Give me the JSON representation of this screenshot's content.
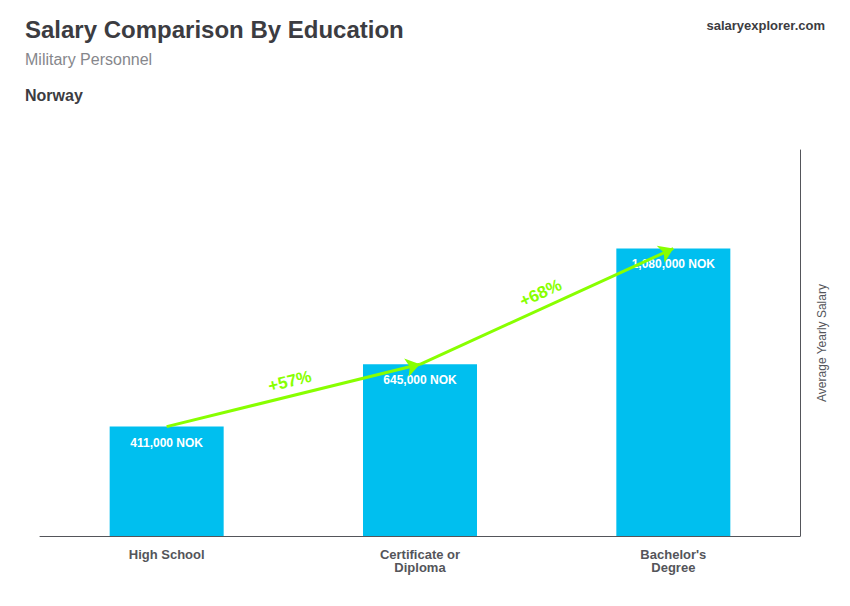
{
  "chart_data": {
    "type": "bar",
    "title": "Salary Comparison By Education",
    "subtitle": "Military Personnel",
    "ylabel": "Average Yearly Salary",
    "categories": [
      "High School",
      "Certificate or\nDiploma",
      "Bachelor's\nDegree"
    ],
    "values": [
      411000,
      645000,
      1080000
    ],
    "value_labels": [
      "411,000 NOK",
      "645,000 NOK",
      "1,080,000 NOK"
    ],
    "color": "#00bfef",
    "ylim": [
      0,
      1450000
    ],
    "data_labels": true,
    "tick_labels": "x",
    "grid": false,
    "annotations": [
      {
        "text": "Norway"
      },
      {
        "text": "salaryexplorer.com"
      },
      {
        "text": "+57%",
        "color": "#88ff00",
        "from": "High School",
        "to": "Certificate or\nDiploma"
      },
      {
        "text": "+68%",
        "color": "#88ff00",
        "from": "Certificate or\nDiploma",
        "to": "Bachelor's\nDegree"
      }
    ]
  }
}
